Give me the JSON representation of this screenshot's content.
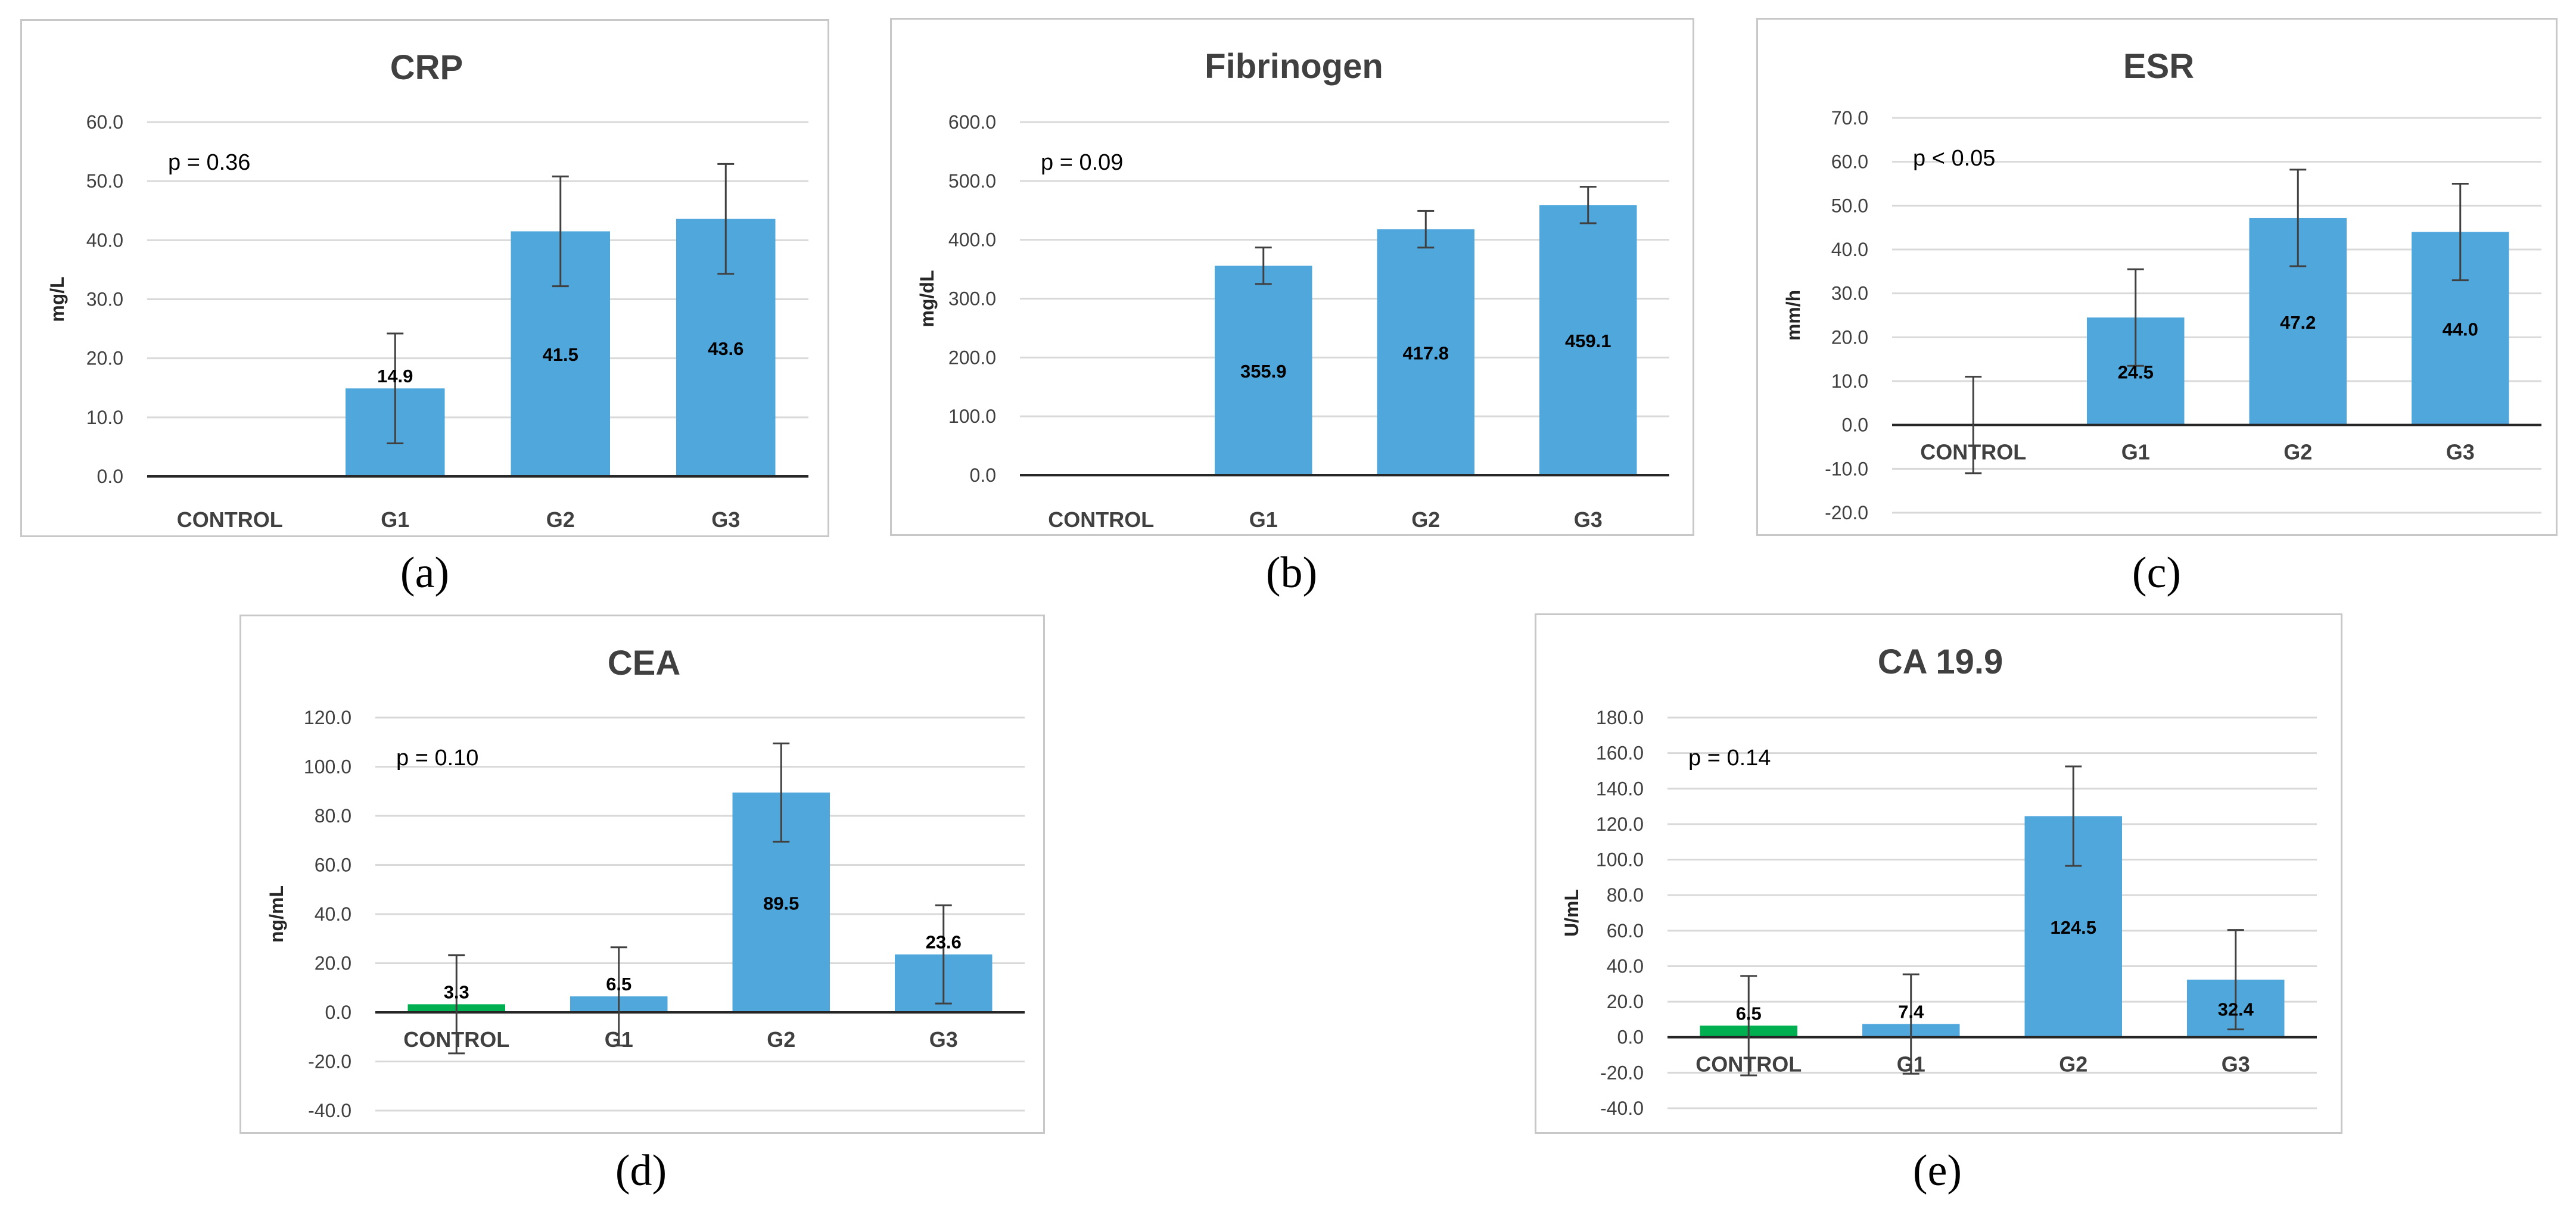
{
  "chart_data": [
    {
      "id": "a",
      "caption": "(a)",
      "type": "bar",
      "title": "CRP",
      "ylabel": "mg/L",
      "annotation": "p = 0.36",
      "categories": [
        "CONTROL",
        "G1",
        "G2",
        "G3"
      ],
      "values": [
        null,
        14.9,
        41.5,
        43.6
      ],
      "value_labels": [
        "",
        "14.9",
        "41.5",
        "43.6"
      ],
      "error": [
        null,
        9.3,
        9.3,
        9.3
      ],
      "bar_colors": [
        "#00b050",
        "#4fa7dc",
        "#4fa7dc",
        "#4fa7dc"
      ],
      "ylim": [
        0,
        60
      ],
      "yticks": [
        "0.0",
        "10.0",
        "20.0",
        "30.0",
        "40.0",
        "50.0",
        "60.0"
      ]
    },
    {
      "id": "b",
      "caption": "(b)",
      "type": "bar",
      "title": "Fibrinogen",
      "ylabel": "mg/dL",
      "annotation": "p = 0.09",
      "categories": [
        "CONTROL",
        "G1",
        "G2",
        "G3"
      ],
      "values": [
        null,
        355.9,
        417.8,
        459.1
      ],
      "value_labels": [
        "",
        "355.9",
        "417.8",
        "459.1"
      ],
      "error": [
        null,
        31,
        31,
        31
      ],
      "bar_colors": [
        "#00b050",
        "#4fa7dc",
        "#4fa7dc",
        "#4fa7dc"
      ],
      "ylim": [
        0,
        600
      ],
      "yticks": [
        "0.0",
        "100.0",
        "200.0",
        "300.0",
        "400.0",
        "500.0",
        "600.0"
      ]
    },
    {
      "id": "c",
      "caption": "(c)",
      "type": "bar",
      "title": "ESR",
      "ylabel": "mm/h",
      "annotation": "p < 0.05",
      "categories": [
        "CONTROL",
        "G1",
        "G2",
        "G3"
      ],
      "values": [
        0,
        24.5,
        47.2,
        44.0
      ],
      "value_labels": [
        "",
        "24.5",
        "47.2",
        "44.0"
      ],
      "error": [
        11,
        11,
        11,
        11
      ],
      "bar_colors": [
        "#00b050",
        "#4fa7dc",
        "#4fa7dc",
        "#4fa7dc"
      ],
      "ylim": [
        -20,
        70
      ],
      "yticks": [
        "-20.0",
        "-10.0",
        "0.0",
        "10.0",
        "20.0",
        "30.0",
        "40.0",
        "50.0",
        "60.0",
        "70.0"
      ]
    },
    {
      "id": "d",
      "caption": "(d)",
      "type": "bar",
      "title": "CEA",
      "ylabel": "ng/mL",
      "annotation": "p = 0.10",
      "categories": [
        "CONTROL",
        "G1",
        "G2",
        "G3"
      ],
      "values": [
        3.3,
        6.5,
        89.5,
        23.6
      ],
      "value_labels": [
        "3.3",
        "6.5",
        "89.5",
        "23.6"
      ],
      "error": [
        20,
        20,
        20,
        20
      ],
      "bar_colors": [
        "#00b050",
        "#4fa7dc",
        "#4fa7dc",
        "#4fa7dc"
      ],
      "ylim": [
        -40,
        120
      ],
      "yticks": [
        "-40.0",
        "-20.0",
        "0.0",
        "20.0",
        "40.0",
        "60.0",
        "80.0",
        "100.0",
        "120.0"
      ]
    },
    {
      "id": "e",
      "caption": "(e)",
      "type": "bar",
      "title": "CA 19.9",
      "ylabel": "U/mL",
      "annotation": "p = 0.14",
      "categories": [
        "CONTROL",
        "G1",
        "G2",
        "G3"
      ],
      "values": [
        6.5,
        7.4,
        124.5,
        32.4
      ],
      "value_labels": [
        "6.5",
        "7.4",
        "124.5",
        "32.4"
      ],
      "error": [
        28,
        28,
        28,
        28
      ],
      "bar_colors": [
        "#00b050",
        "#4fa7dc",
        "#4fa7dc",
        "#4fa7dc"
      ],
      "ylim": [
        -40,
        180
      ],
      "yticks": [
        "-40.0",
        "-20.0",
        "0.0",
        "20.0",
        "40.0",
        "60.0",
        "80.0",
        "100.0",
        "120.0",
        "140.0",
        "160.0",
        "180.0"
      ]
    }
  ]
}
